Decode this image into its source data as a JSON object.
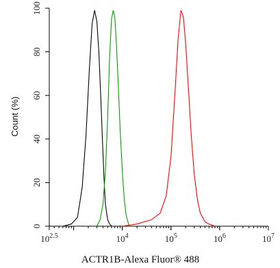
{
  "chart_data": {
    "type": "line",
    "xlabel": "ACTR1B-Alexa Fluor® 488",
    "ylabel": "Count (%)",
    "x_scale": "log",
    "xlim": [
      316.23,
      10000000
    ],
    "ylim": [
      0,
      100
    ],
    "grid": false,
    "x_ticks": [
      {
        "value": 316.23,
        "base": "10",
        "exp": "2.5"
      },
      {
        "value": 10000,
        "base": "10",
        "exp": "4"
      },
      {
        "value": 100000,
        "base": "10",
        "exp": "5"
      },
      {
        "value": 1000000,
        "base": "10",
        "exp": "6"
      },
      {
        "value": 10000000,
        "base": "10",
        "exp": "7"
      }
    ],
    "y_ticks": [
      0,
      20,
      40,
      60,
      80,
      100
    ],
    "series": [
      {
        "color": "#000000",
        "x": [
          600,
          900,
          1200,
          1500,
          1800,
          2100,
          2400,
          2700,
          3000,
          3300,
          3600,
          3900,
          4200,
          4500,
          5000,
          5500,
          6000
        ],
        "y": [
          0,
          1,
          4,
          18,
          42,
          72,
          93,
          99,
          94,
          80,
          60,
          40,
          22,
          10,
          3,
          1,
          0
        ]
      },
      {
        "color": "#00a000",
        "x": [
          3000,
          3500,
          4000,
          4500,
          5000,
          5500,
          6000,
          6500,
          7000,
          7500,
          8000,
          9000,
          10000,
          11000,
          12000,
          13000,
          14000
        ],
        "y": [
          0,
          3,
          10,
          25,
          50,
          78,
          95,
          99,
          96,
          85,
          72,
          45,
          25,
          12,
          5,
          2,
          0
        ]
      },
      {
        "color": "#ff0000",
        "x": [
          10000,
          20000,
          40000,
          60000,
          80000,
          100000,
          120000,
          140000,
          160000,
          180000,
          200000,
          230000,
          260000,
          300000,
          350000,
          400000,
          500000,
          600000,
          800000
        ],
        "y": [
          0,
          1,
          3,
          6,
          14,
          32,
          60,
          86,
          99,
          96,
          84,
          62,
          42,
          24,
          12,
          6,
          2,
          1,
          0
        ]
      }
    ]
  }
}
